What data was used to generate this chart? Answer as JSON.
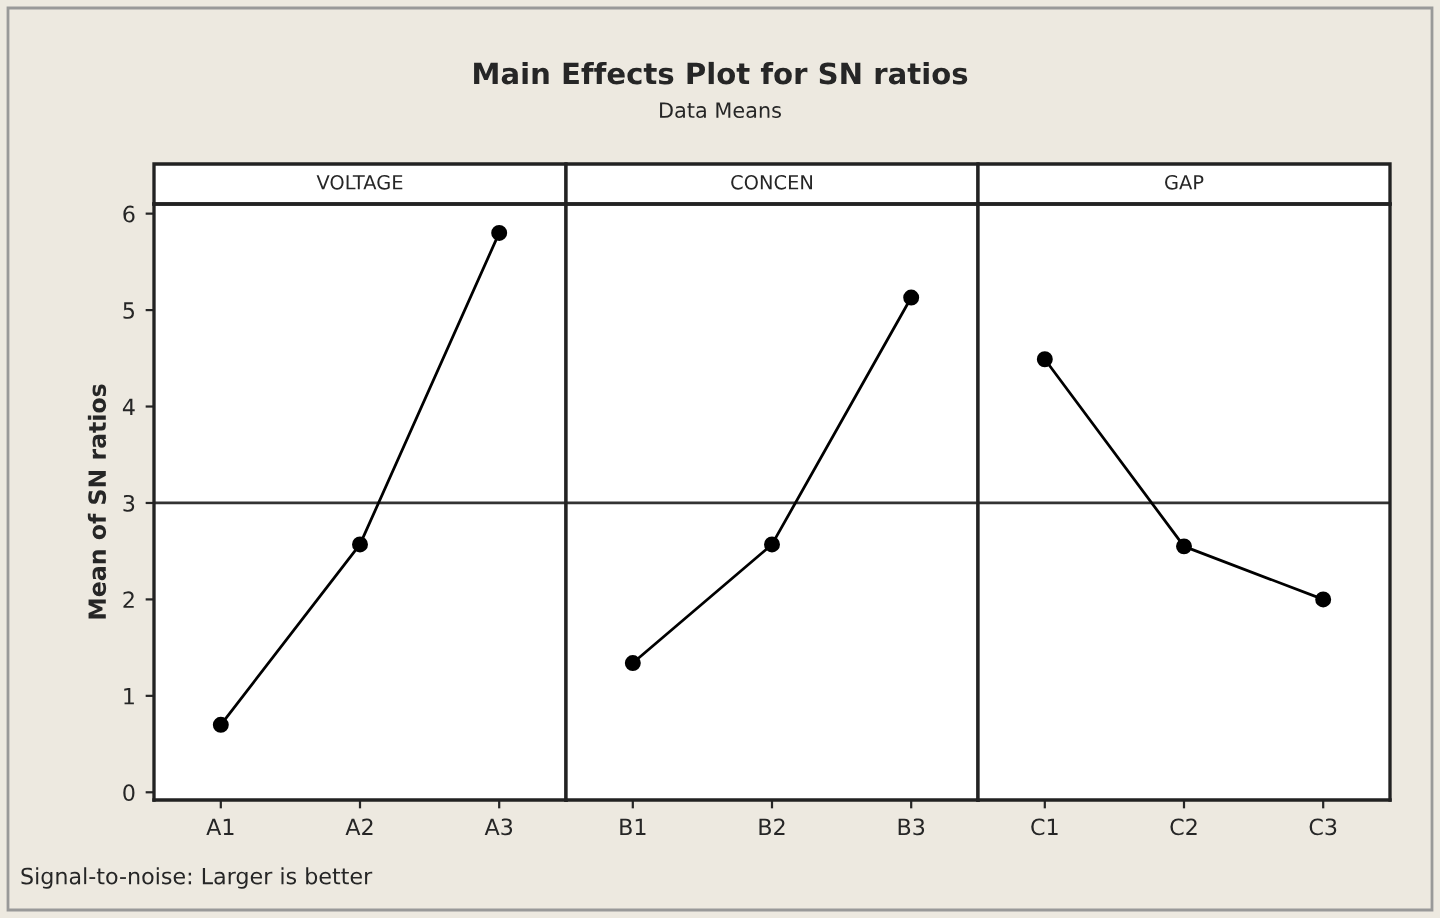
{
  "chart_data": [
    {
      "type": "line",
      "title": "VOLTAGE",
      "ylabel": "Mean of SN ratios",
      "annotations": [
        "Main Effects Plot for SN ratios",
        "Data Means",
        "Signal-to-noise: Larger is better"
      ],
      "categories": [
        "A1",
        "A2",
        "A3"
      ],
      "series": [
        {
          "color": "#000000",
          "values": [
            0.7,
            2.57,
            5.8
          ]
        }
      ],
      "ylim": [
        -0.08,
        6.1
      ],
      "yticks": [
        0,
        1,
        2,
        3,
        4,
        5,
        6
      ],
      "ref_lines": [
        {
          "axis": "y",
          "value": 3.0,
          "color": "#333333"
        }
      ],
      "marker": "circle",
      "line_style": "solid",
      "grid": false,
      "legend": false
    },
    {
      "type": "line",
      "title": "CONCEN",
      "categories": [
        "B1",
        "B2",
        "B3"
      ],
      "series": [
        {
          "color": "#000000",
          "values": [
            1.34,
            2.57,
            5.13
          ]
        }
      ],
      "ylim": [
        -0.08,
        6.1
      ],
      "yticks": [
        0,
        1,
        2,
        3,
        4,
        5,
        6
      ],
      "tick_labels": "x",
      "ref_lines": [
        {
          "axis": "y",
          "value": 3.0,
          "color": "#333333"
        }
      ],
      "marker": "circle",
      "line_style": "solid",
      "grid": false,
      "legend": false
    },
    {
      "type": "line",
      "title": "GAP",
      "categories": [
        "C1",
        "C2",
        "C3"
      ],
      "series": [
        {
          "color": "#000000",
          "values": [
            4.49,
            2.55,
            2.0
          ]
        }
      ],
      "ylim": [
        -0.08,
        6.1
      ],
      "yticks": [
        0,
        1,
        2,
        3,
        4,
        5,
        6
      ],
      "tick_labels": "x",
      "ref_lines": [
        {
          "axis": "y",
          "value": 3.0,
          "color": "#333333"
        }
      ],
      "marker": "circle",
      "line_style": "solid",
      "grid": false,
      "legend": false
    }
  ]
}
